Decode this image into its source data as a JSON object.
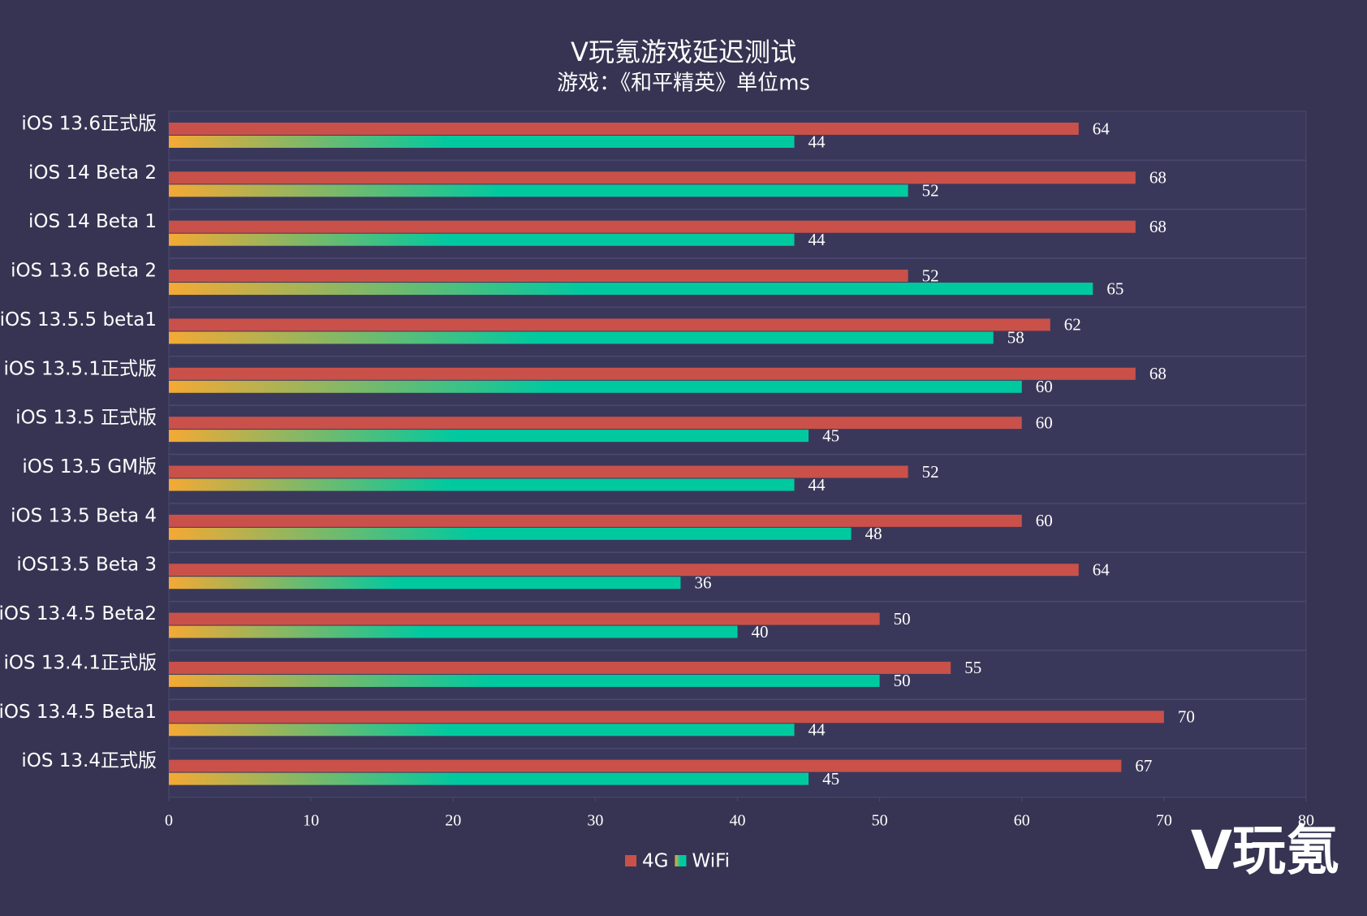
{
  "chart_data": {
    "type": "hbar",
    "title": "V玩氪游戏延迟测试",
    "subtitle": "游戏：《和平精英》单位ms",
    "categories": [
      "iOS 13.6正式版",
      "iOS 14 Beta 2",
      "iOS 14 Beta 1",
      "iOS 13.6 Beta 2",
      "iOS 13.5.5 beta1",
      "iOS 13.5.1正式版",
      "iOS 13.5 正式版",
      "iOS 13.5 GM版",
      "iOS 13.5 Beta 4",
      "iOS13.5 Beta 3",
      "iOS 13.4.5 Beta2",
      "iOS 13.4.1正式版",
      "iOS 13.4.5 Beta1",
      "iOS 13.4正式版"
    ],
    "series": [
      {
        "name": "4G",
        "color": "#c9514a",
        "values": [
          64,
          68,
          68,
          52,
          62,
          68,
          60,
          52,
          60,
          64,
          50,
          55,
          70,
          67
        ]
      },
      {
        "name": "WiFi",
        "color": "#00c9a0",
        "gradient": [
          "#f4a934",
          "#00c9a0"
        ],
        "values": [
          44,
          52,
          44,
          65,
          58,
          60,
          45,
          44,
          48,
          36,
          40,
          50,
          44,
          45
        ]
      }
    ],
    "xlim": [
      0,
      80
    ],
    "xticks": [
      0,
      10,
      20,
      30,
      40,
      50,
      60,
      70,
      80
    ],
    "watermark": "V玩氪"
  }
}
